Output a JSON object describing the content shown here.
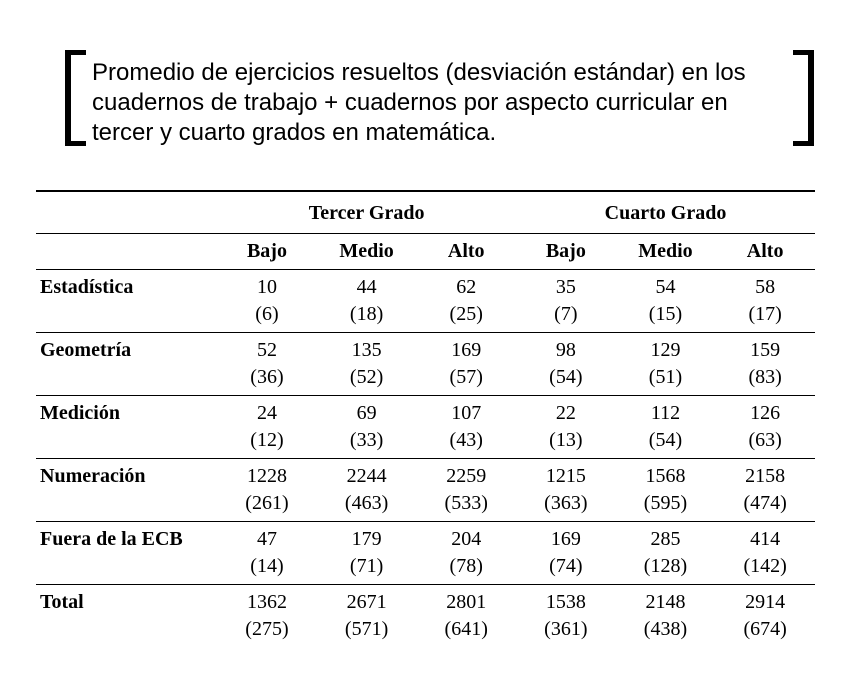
{
  "title": "Promedio de ejercicios resueltos (desviación estándar) en los cuadernos de trabajo + cuadernos por aspecto curricular en tercer y cuarto grados en matemática.",
  "colors": {
    "text": "#000000",
    "background": "#ffffff",
    "rule": "#000000",
    "bullet": "#808000"
  },
  "grade_headers": [
    "Tercer Grado",
    "Cuarto Grado"
  ],
  "level_headers": [
    "Bajo",
    "Medio",
    "Alto",
    "Bajo",
    "Medio",
    "Alto"
  ],
  "rows": [
    {
      "label": "Estadística",
      "mean": [
        "10",
        "44",
        "62",
        "35",
        "54",
        "58"
      ],
      "sd": [
        "(6)",
        "(18)",
        "(25)",
        "(7)",
        "(15)",
        "(17)"
      ]
    },
    {
      "label": "Geometría",
      "mean": [
        "52",
        "135",
        "169",
        "98",
        "129",
        "159"
      ],
      "sd": [
        "(36)",
        "(52)",
        "(57)",
        "(54)",
        "(51)",
        "(83)"
      ]
    },
    {
      "label": "Medición",
      "mean": [
        "24",
        "69",
        "107",
        "22",
        "112",
        "126"
      ],
      "sd": [
        "(12)",
        "(33)",
        "(43)",
        "(13)",
        "(54)",
        "(63)"
      ]
    },
    {
      "label": "Numeración",
      "mean": [
        "1228",
        "2244",
        "2259",
        "1215",
        "1568",
        "2158"
      ],
      "sd": [
        "(261)",
        "(463)",
        "(533)",
        "(363)",
        "(595)",
        "(474)"
      ]
    },
    {
      "label": "Fuera de la ECB",
      "mean": [
        "47",
        "179",
        "204",
        "169",
        "285",
        "414"
      ],
      "sd": [
        "(14)",
        "(71)",
        "(78)",
        "(74)",
        "(128)",
        "(142)"
      ]
    },
    {
      "label": "Total",
      "mean": [
        "1362",
        "2671",
        "2801",
        "1538",
        "2148",
        "2914"
      ],
      "sd": [
        "(275)",
        "(571)",
        "(641)",
        "(361)",
        "(438)",
        "(674)"
      ]
    }
  ],
  "typography": {
    "title_font": "Arial",
    "title_size_pt": 18,
    "table_font": "Times New Roman",
    "table_size_pt": 15
  }
}
